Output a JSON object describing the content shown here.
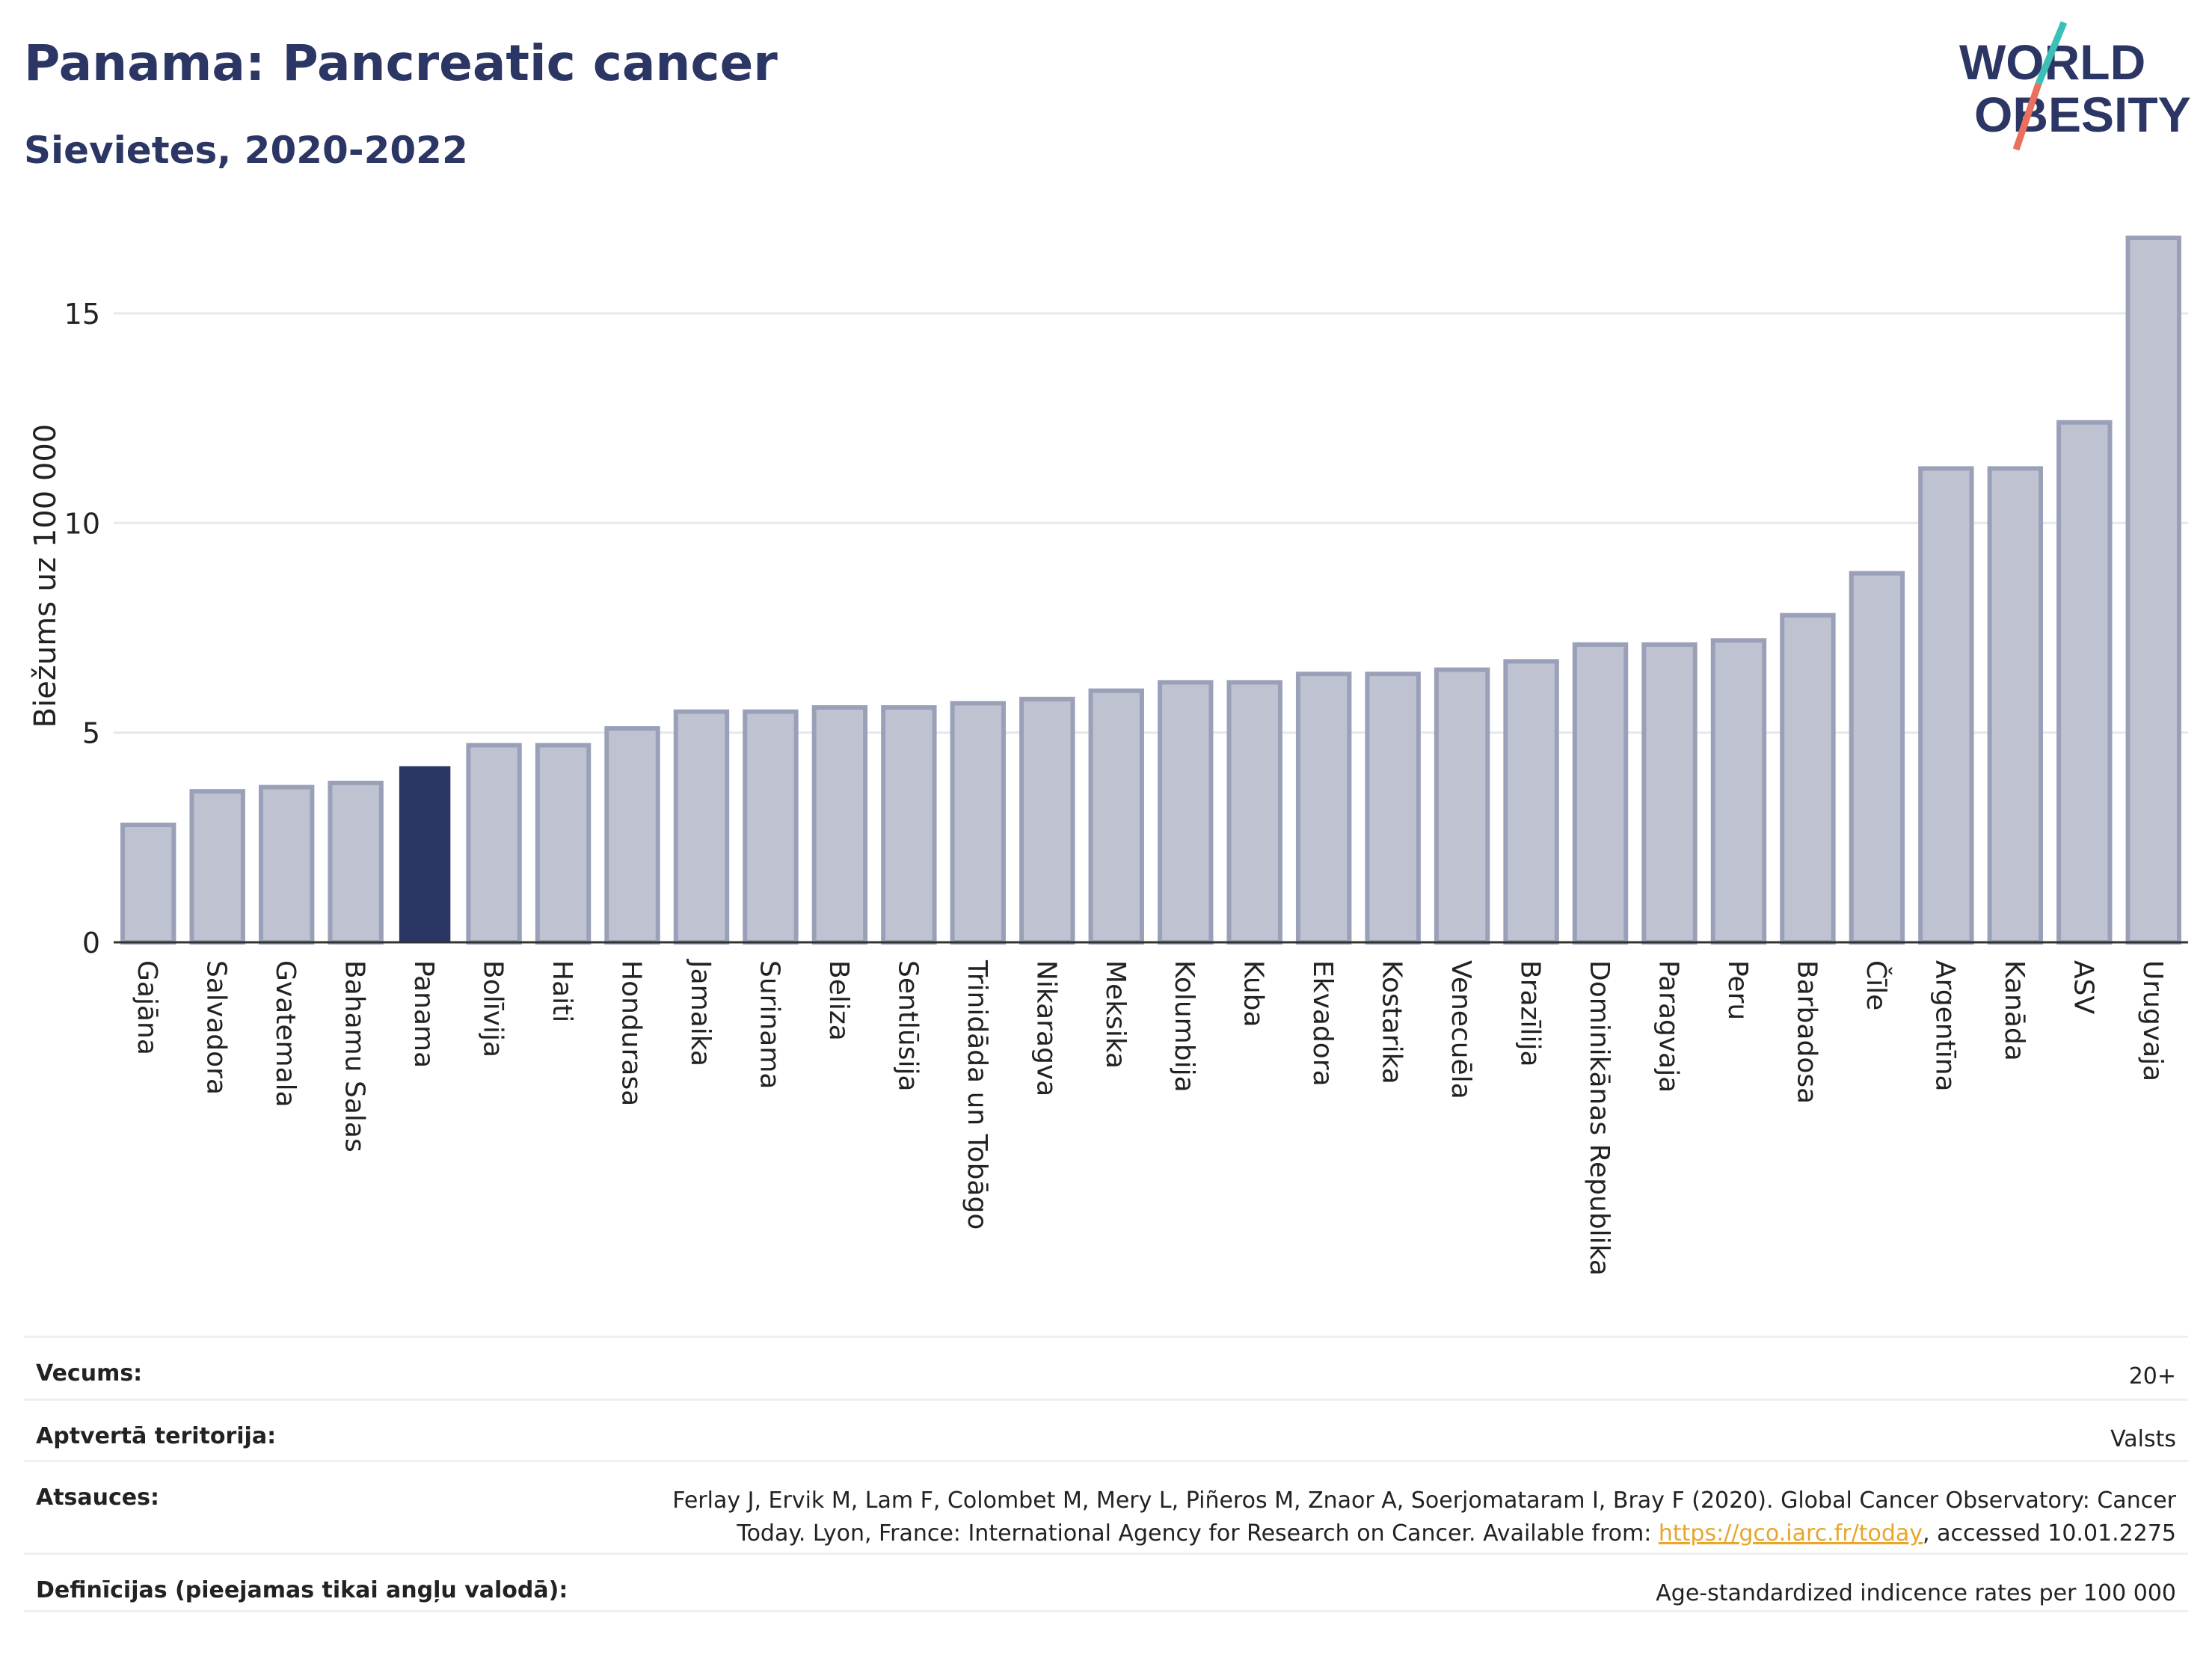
{
  "header": {
    "title": "Panama: Pancreatic cancer",
    "subtitle": "Sievietes, 2020-2022"
  },
  "logo": {
    "line1": "WORLD",
    "line2": "OBESITY",
    "colors": {
      "text": "#2b3664",
      "slash_teal": "#3bbfb6",
      "slash_coral": "#e8705d"
    }
  },
  "colors": {
    "bar_default_fill": "#bfc3d1",
    "bar_default_stroke": "#9aa0b8",
    "bar_highlight": "#2b3664",
    "gridline": "#e6e8ee",
    "axis": "#333333"
  },
  "chart_data": {
    "type": "bar",
    "ylabel": "Biežums uz 100 000",
    "xlabel": "",
    "ylim": [
      0,
      17.3
    ],
    "yticks": [
      0,
      5,
      10,
      15
    ],
    "grid": true,
    "highlight": "Panama",
    "categories": [
      "Gajāna",
      "Salvadora",
      "Gvatemala",
      "Bahamu Salas",
      "Panama",
      "Bolīvija",
      "Haiti",
      "Hondurasa",
      "Jamaika",
      "Surinama",
      "Beliza",
      "Sentlūsija",
      "Trinidāda un Tobāgo",
      "Nikaragva",
      "Meksika",
      "Kolumbija",
      "Kuba",
      "Ekvadora",
      "Kostarika",
      "Venecuēla",
      "Brazīlija",
      "Dominikānas Republika",
      "Paragvaja",
      "Peru",
      "Barbadosa",
      "Čīle",
      "Argentīna",
      "Kanāda",
      "ASV",
      "Urugvaja"
    ],
    "values": [
      2.8,
      3.6,
      3.7,
      3.8,
      4.2,
      4.7,
      4.7,
      5.1,
      5.5,
      5.5,
      5.6,
      5.6,
      5.7,
      5.8,
      6.0,
      6.2,
      6.2,
      6.4,
      6.4,
      6.5,
      6.7,
      7.1,
      7.1,
      7.2,
      7.8,
      8.8,
      11.3,
      11.3,
      12.4,
      16.8
    ]
  },
  "info": {
    "rows": [
      {
        "label": "Vecums:",
        "value": "20+"
      },
      {
        "label": "Aptvertā teritorija:",
        "value": "Valsts"
      },
      {
        "label": "Atsauces:",
        "value_line1": "Ferlay J, Ervik M, Lam F, Colombet M, Mery L, Piñeros M, Znaor A, Soerjomataram I, Bray F (2020). Global Cancer Observatory: Cancer",
        "value_line2_pre": "Today. Lyon, France: International Agency for Research on Cancer. Available from: ",
        "link": "https://gco.iarc.fr/today",
        "value_line2_post": ", accessed 10.01.2275"
      },
      {
        "label": "Definīcijas (pieejamas tikai angļu valodā):",
        "value": "Age-standardized indicence rates per 100 000"
      }
    ]
  }
}
